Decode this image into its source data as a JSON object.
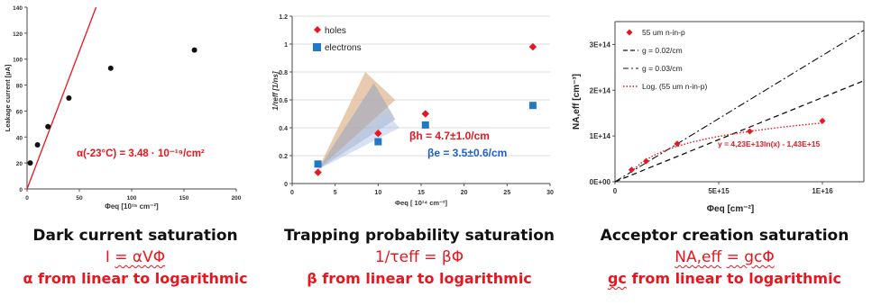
{
  "chart_data": [
    {
      "type": "scatter",
      "ylabel": "Leakage current [µA]",
      "xlabel": "Φeq [10¹⁵ cm⁻²]",
      "xlim": [
        0,
        200
      ],
      "ylim": [
        0,
        140
      ],
      "xticks": [
        "0",
        "50",
        "100",
        "150",
        "200"
      ],
      "yticks": [
        "0",
        "20",
        "40",
        "60",
        "80",
        "100",
        "120",
        "140"
      ],
      "points": [
        [
          3,
          20
        ],
        [
          10,
          34
        ],
        [
          20,
          48
        ],
        [
          40,
          70
        ],
        [
          80,
          93
        ],
        [
          160,
          107
        ]
      ],
      "fit_line": [
        [
          0,
          0
        ],
        [
          66,
          140
        ]
      ],
      "annotation": "α(-23°C) = 3.48 · 10⁻¹⁹/cm²",
      "point_color": "#111111",
      "line_color": "#e8161f"
    },
    {
      "type": "scatter",
      "ylabel": "1/τeff [1/ns]",
      "xlabel": "Φeq [ 10¹⁴ cm⁻²]",
      "xlim": [
        0,
        30
      ],
      "ylim": [
        0,
        1.2
      ],
      "xticks": [
        "0",
        "5",
        "10",
        "15",
        "20",
        "25",
        "30"
      ],
      "yticks": [
        "0",
        "0.2",
        "0.4",
        "0.6",
        "0.8",
        "1",
        "1.2"
      ],
      "series": [
        {
          "name": "holes",
          "color": "#e8161f",
          "marker": "diamond",
          "points": [
            [
              3,
              0.08
            ],
            [
              10,
              0.36
            ],
            [
              15.5,
              0.5
            ],
            [
              28,
              0.98
            ]
          ]
        },
        {
          "name": "electrons",
          "color": "#1f78c8",
          "marker": "square",
          "points": [
            [
              3,
              0.14
            ],
            [
              10,
              0.3
            ],
            [
              15.5,
              0.42
            ],
            [
              28,
              0.56
            ]
          ]
        }
      ],
      "annotations": [
        {
          "text": "βh = 4.7±1.0/cm",
          "color": "#e8161f"
        },
        {
          "text": "βe = 3.5±0.6/cm",
          "color": "#1f5fc8"
        }
      ],
      "legend": "top-left"
    },
    {
      "type": "scatter",
      "ylabel": "NA,eff [cm⁻³]",
      "xlabel": "Φeq [cm⁻²]",
      "xlim": [
        0,
        1.2e+16
      ],
      "ylim": [
        0,
        350000000000000.0
      ],
      "xticks": [
        "0",
        "5E+15",
        "1E+16"
      ],
      "yticks": [
        "0E+00",
        "1E+14",
        "2E+14",
        "3E+14"
      ],
      "series": [
        {
          "name": "55 um n-in-p",
          "color": "#e8161f",
          "marker": "diamond",
          "points": [
            [
              800000000000000.0,
              26000000000000.0
            ],
            [
              1500000000000000.0,
              45000000000000.0
            ],
            [
              3000000000000000.0,
              83000000000000.0
            ],
            [
              6500000000000000.0,
              110000000000000.0
            ],
            [
              1e+16,
              133000000000000.0
            ]
          ]
        },
        {
          "name": "g = 0.02/cm",
          "color": "#111111",
          "style": "dashed"
        },
        {
          "name": "g = 0.03/cm",
          "color": "#111111",
          "style": "dashdot"
        },
        {
          "name": "Log.  (55 um n-in-p)",
          "color": "#e8161f",
          "style": "dotted"
        }
      ],
      "annotation": "y = 4,23E+13ln(x) - 1,43E+15",
      "legend": "top-left"
    }
  ],
  "captions": [
    {
      "title": "Dark current saturation",
      "eq_lhs": "I",
      "eq_rhs": "= αVΦ",
      "note_pre": "α",
      "note_post": "from linear to logarithmic"
    },
    {
      "title": "Trapping probability saturation",
      "eq_lhs": "1/τeff",
      "eq_rhs": "= βΦ",
      "note_pre": "β",
      "note_post": "from linear to logarithmic"
    },
    {
      "title": "Acceptor creation saturation",
      "eq_lhs": "NA,eff",
      "eq_rhs": "= gcΦ",
      "note_pre": "gc",
      "note_post": "from linear to logarithmic"
    }
  ]
}
